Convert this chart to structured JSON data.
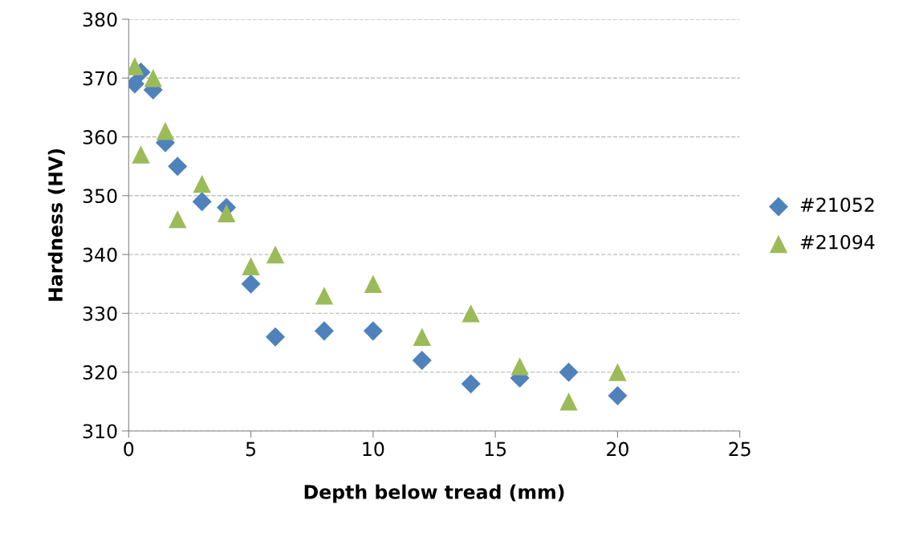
{
  "chart_data": {
    "type": "scatter",
    "xlabel": "Depth below tread (mm)",
    "ylabel": "Hardness (HV)",
    "xlim": [
      0,
      25
    ],
    "xticks": [
      0,
      5,
      10,
      15,
      20,
      25
    ],
    "ylim": [
      310,
      380
    ],
    "yticks": [
      310,
      320,
      330,
      340,
      350,
      360,
      370,
      380
    ],
    "grid": "y",
    "legend": "right",
    "series": [
      {
        "name": "#21052",
        "color": "#4f81bd",
        "marker": "diamond",
        "x": [
          0.25,
          0.5,
          1,
          1.5,
          2,
          3,
          4,
          5,
          6,
          8,
          10,
          12,
          14,
          16,
          18,
          20
        ],
        "values": [
          369,
          371,
          368,
          359,
          355,
          349,
          348,
          335,
          326,
          327,
          327,
          322,
          318,
          319,
          320,
          316
        ]
      },
      {
        "name": "#21094",
        "color": "#9bbb59",
        "marker": "triangle",
        "x": [
          0.25,
          0.5,
          1,
          1.5,
          2,
          3,
          4,
          5,
          6,
          8,
          10,
          12,
          14,
          16,
          18,
          20
        ],
        "values": [
          372,
          357,
          370,
          361,
          346,
          352,
          347,
          338,
          340,
          333,
          335,
          326,
          330,
          321,
          315,
          320
        ]
      }
    ]
  }
}
